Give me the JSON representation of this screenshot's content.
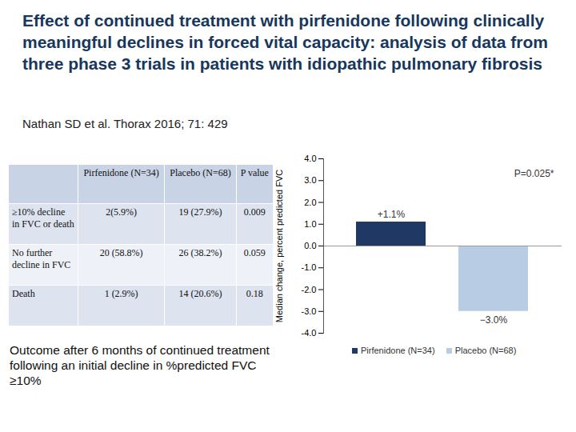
{
  "header": {
    "title": "Effect of continued treatment with pirfenidone following clinically meaningful declines in forced vital capacity: analysis of data from three phase 3 trials in patients with idiopathic pulmonary fibrosis",
    "citation": "Nathan SD et al. Thorax 2016; 71: 429"
  },
  "table": {
    "header": [
      "",
      "Pirfenidone (N=34)",
      "Placebo (N=68)",
      "P value"
    ],
    "rows": [
      [
        "≥10% decline in FVC or death",
        "2(5.9%)",
        "19 (27.9%)",
        "0.009"
      ],
      [
        "No further decline in FVC",
        "20 (58.8%)",
        "26 (38.2%)",
        "0.059"
      ],
      [
        "Death",
        "1 (2.9%)",
        "14 (20.6%)",
        "0.18"
      ]
    ]
  },
  "caption": "Outcome after 6 months of continued treatment following an initial decline in %predicted FVC ≥10%",
  "chart_data": {
    "type": "bar",
    "categories": [
      null
    ],
    "series": [
      {
        "name": "Pirfenidone (N=34)",
        "color": "#1f3864",
        "values": [
          1.1
        ],
        "value_labels": [
          "+1.1%"
        ]
      },
      {
        "name": "Placebo (N=68)",
        "color": "#b8cce4",
        "values": [
          -3.0
        ],
        "value_labels": [
          "−3.0%"
        ]
      }
    ],
    "y_label": "Median change, percent predicted FVC",
    "annotations": [
      "P=0.025*"
    ],
    "ylim": [
      -4,
      4
    ],
    "yticks": [
      {
        "value": 4,
        "label": "4.0"
      },
      {
        "value": 3,
        "label": "3.0"
      },
      {
        "value": 2,
        "label": "2.0"
      },
      {
        "value": 1,
        "label": "1.0"
      },
      {
        "value": 0,
        "label": "0.0"
      },
      {
        "value": -1,
        "label": "-1.0"
      },
      {
        "value": -2,
        "label": "-2.0"
      },
      {
        "value": -3,
        "label": "-3.0"
      },
      {
        "value": -4,
        "label": "-4.0"
      }
    ],
    "grid": false,
    "data_labels": true,
    "legend": "bottom"
  }
}
